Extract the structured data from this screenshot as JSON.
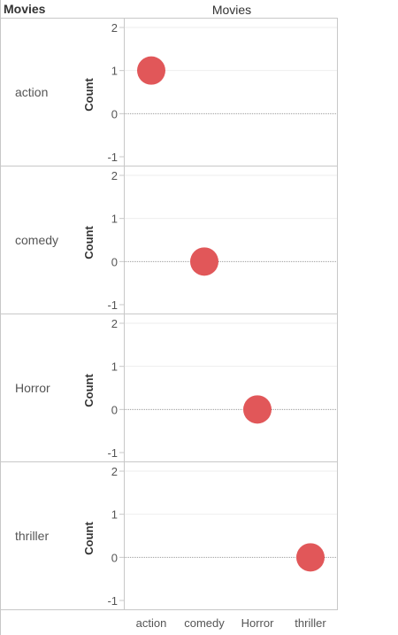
{
  "header": {
    "row_field": "Movies",
    "column_field": "Movies"
  },
  "chart_data": {
    "type": "scatter",
    "title": "",
    "row_field": "Movies",
    "column_field": "Movies",
    "ylabel": "Count",
    "ylim": [
      -1,
      2
    ],
    "yticks": [
      2,
      1,
      0,
      -1
    ],
    "categories": [
      "action",
      "comedy",
      "Horror",
      "thriller"
    ],
    "panels": [
      {
        "row": "action",
        "points": [
          {
            "x": "action",
            "y": 1
          }
        ]
      },
      {
        "row": "comedy",
        "points": [
          {
            "x": "comedy",
            "y": 0
          }
        ]
      },
      {
        "row": "Horror",
        "points": [
          {
            "x": "Horror",
            "y": 0
          }
        ]
      },
      {
        "row": "thriller",
        "points": [
          {
            "x": "thriller",
            "y": 0
          }
        ]
      }
    ],
    "marker_color": "#e15759",
    "grid": true
  }
}
